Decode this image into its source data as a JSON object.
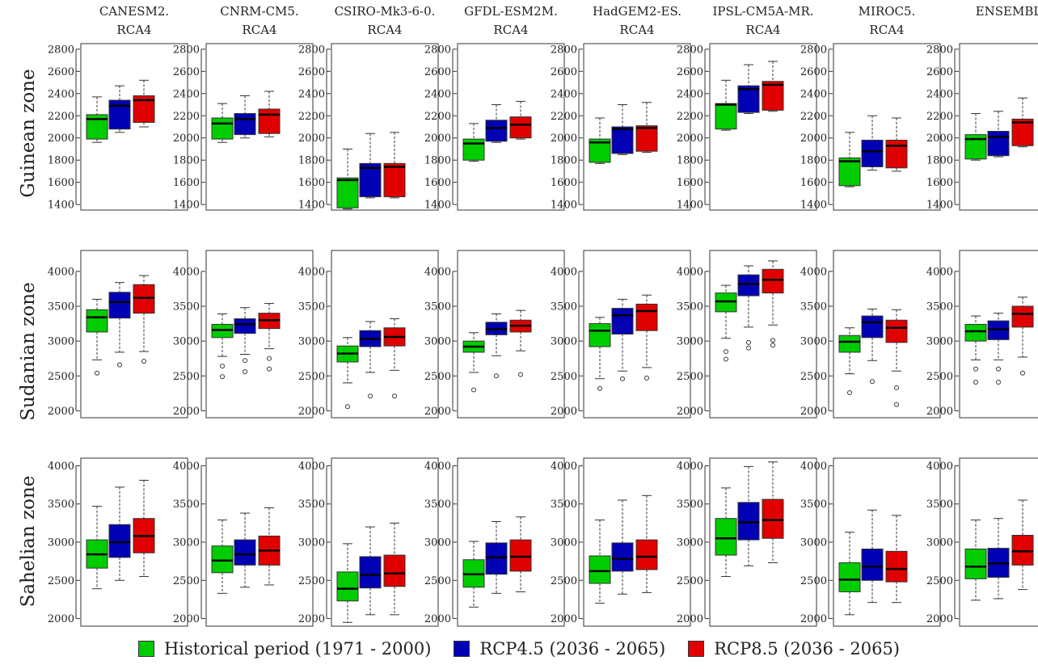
{
  "chart_data": {
    "type": "boxplot",
    "models": [
      {
        "name_line1": "CANESM2.",
        "name_line2": "RCA4"
      },
      {
        "name_line1": "CNRM-CM5.",
        "name_line2": "RCA4"
      },
      {
        "name_line1": "CSIRO-Mk3-6-0.",
        "name_line2": "RCA4"
      },
      {
        "name_line1": "GFDL-ESM2M.",
        "name_line2": "RCA4"
      },
      {
        "name_line1": "HadGEM2-ES.",
        "name_line2": "RCA4"
      },
      {
        "name_line1": "IPSL-CM5A-MR.",
        "name_line2": "RCA4"
      },
      {
        "name_line1": "MIROC5.",
        "name_line2": "RCA4"
      },
      {
        "name_line1": "ENSEMBLE",
        "name_line2": ""
      }
    ],
    "zones": [
      {
        "name": "Guinean zone",
        "ylim": [
          1350,
          2850
        ],
        "yticks": [
          1400,
          1600,
          1800,
          2000,
          2200,
          2400,
          2600,
          2800
        ],
        "panels": [
          [
            {
              "min": 1960,
              "q1": 1990,
              "median": 2170,
              "q3": 2210,
              "max": 2370,
              "outliers": []
            },
            {
              "min": 2050,
              "q1": 2080,
              "median": 2290,
              "q3": 2340,
              "max": 2470,
              "outliers": []
            },
            {
              "min": 2100,
              "q1": 2140,
              "median": 2340,
              "q3": 2380,
              "max": 2520,
              "outliers": []
            }
          ],
          [
            {
              "min": 1960,
              "q1": 1990,
              "median": 2130,
              "q3": 2180,
              "max": 2310,
              "outliers": []
            },
            {
              "min": 2000,
              "q1": 2030,
              "median": 2170,
              "q3": 2220,
              "max": 2380,
              "outliers": []
            },
            {
              "min": 2010,
              "q1": 2040,
              "median": 2210,
              "q3": 2260,
              "max": 2420,
              "outliers": []
            }
          ],
          [
            {
              "min": 1360,
              "q1": 1370,
              "median": 1620,
              "q3": 1640,
              "max": 1900,
              "outliers": []
            },
            {
              "min": 1460,
              "q1": 1470,
              "median": 1730,
              "q3": 1770,
              "max": 2040,
              "outliers": []
            },
            {
              "min": 1460,
              "q1": 1470,
              "median": 1740,
              "q3": 1770,
              "max": 2050,
              "outliers": []
            }
          ],
          [
            {
              "min": 1790,
              "q1": 1800,
              "median": 1950,
              "q3": 1990,
              "max": 2130,
              "outliers": []
            },
            {
              "min": 1960,
              "q1": 1970,
              "median": 2090,
              "q3": 2160,
              "max": 2300,
              "outliers": []
            },
            {
              "min": 1990,
              "q1": 2000,
              "median": 2120,
              "q3": 2190,
              "max": 2330,
              "outliers": []
            }
          ],
          [
            {
              "min": 1770,
              "q1": 1780,
              "median": 1960,
              "q3": 1990,
              "max": 2180,
              "outliers": []
            },
            {
              "min": 1850,
              "q1": 1860,
              "median": 2080,
              "q3": 2100,
              "max": 2300,
              "outliers": []
            },
            {
              "min": 1870,
              "q1": 1880,
              "median": 2090,
              "q3": 2110,
              "max": 2320,
              "outliers": []
            }
          ],
          [
            {
              "min": 2070,
              "q1": 2080,
              "median": 2300,
              "q3": 2310,
              "max": 2520,
              "outliers": []
            },
            {
              "min": 2220,
              "q1": 2230,
              "median": 2440,
              "q3": 2470,
              "max": 2660,
              "outliers": []
            },
            {
              "min": 2240,
              "q1": 2250,
              "median": 2480,
              "q3": 2510,
              "max": 2690,
              "outliers": []
            }
          ],
          [
            {
              "min": 1560,
              "q1": 1570,
              "median": 1790,
              "q3": 1820,
              "max": 2050,
              "outliers": []
            },
            {
              "min": 1710,
              "q1": 1740,
              "median": 1880,
              "q3": 1980,
              "max": 2200,
              "outliers": []
            },
            {
              "min": 1700,
              "q1": 1730,
              "median": 1930,
              "q3": 1980,
              "max": 2180,
              "outliers": []
            }
          ],
          [
            {
              "min": 1800,
              "q1": 1810,
              "median": 1990,
              "q3": 2030,
              "max": 2220,
              "outliers": []
            },
            {
              "min": 1830,
              "q1": 1840,
              "median": 2010,
              "q3": 2060,
              "max": 2240,
              "outliers": []
            },
            {
              "min": 1920,
              "q1": 1930,
              "median": 2140,
              "q3": 2170,
              "max": 2360,
              "outliers": []
            }
          ]
        ]
      },
      {
        "name": "Sudanian zone",
        "ylim": [
          1900,
          4300
        ],
        "yticks": [
          2000,
          2500,
          3000,
          3500,
          4000
        ],
        "panels": [
          [
            {
              "min": 2730,
              "q1": 3130,
              "median": 3340,
              "q3": 3450,
              "max": 3600,
              "outliers": [
                2540
              ]
            },
            {
              "min": 2840,
              "q1": 3330,
              "median": 3560,
              "q3": 3700,
              "max": 3840,
              "outliers": [
                2660
              ]
            },
            {
              "min": 2850,
              "q1": 3400,
              "median": 3620,
              "q3": 3810,
              "max": 3940,
              "outliers": [
                2710
              ]
            }
          ],
          [
            {
              "min": 2780,
              "q1": 3050,
              "median": 3160,
              "q3": 3240,
              "max": 3390,
              "outliers": [
                2640,
                2490
              ]
            },
            {
              "min": 2810,
              "q1": 3110,
              "median": 3240,
              "q3": 3320,
              "max": 3480,
              "outliers": [
                2720,
                2560
              ]
            },
            {
              "min": 2890,
              "q1": 3180,
              "median": 3300,
              "q3": 3400,
              "max": 3540,
              "outliers": [
                2750,
                2600
              ]
            }
          ],
          [
            {
              "min": 2400,
              "q1": 2700,
              "median": 2820,
              "q3": 2930,
              "max": 3050,
              "outliers": [
                2060
              ]
            },
            {
              "min": 2550,
              "q1": 2920,
              "median": 3030,
              "q3": 3150,
              "max": 3280,
              "outliers": [
                2210
              ]
            },
            {
              "min": 2580,
              "q1": 2930,
              "median": 3060,
              "q3": 3190,
              "max": 3320,
              "outliers": [
                2210
              ]
            }
          ],
          [
            {
              "min": 2550,
              "q1": 2840,
              "median": 2920,
              "q3": 3000,
              "max": 3120,
              "outliers": [
                2300
              ]
            },
            {
              "min": 2790,
              "q1": 3090,
              "median": 3170,
              "q3": 3270,
              "max": 3390,
              "outliers": [
                2500
              ]
            },
            {
              "min": 2860,
              "q1": 3130,
              "median": 3220,
              "q3": 3300,
              "max": 3440,
              "outliers": [
                2520
              ]
            }
          ],
          [
            {
              "min": 2460,
              "q1": 2920,
              "median": 3150,
              "q3": 3250,
              "max": 3340,
              "outliers": [
                2320
              ]
            },
            {
              "min": 2570,
              "q1": 3100,
              "median": 3370,
              "q3": 3470,
              "max": 3600,
              "outliers": [
                2460
              ]
            },
            {
              "min": 2620,
              "q1": 3150,
              "median": 3430,
              "q3": 3530,
              "max": 3660,
              "outliers": [
                2470
              ]
            }
          ],
          [
            {
              "min": 3040,
              "q1": 3420,
              "median": 3570,
              "q3": 3690,
              "max": 3800,
              "outliers": [
                2850,
                2740
              ]
            },
            {
              "min": 3200,
              "q1": 3650,
              "median": 3820,
              "q3": 3950,
              "max": 4080,
              "outliers": [
                2980,
                2900
              ]
            },
            {
              "min": 3230,
              "q1": 3690,
              "median": 3880,
              "q3": 4030,
              "max": 4150,
              "outliers": [
                3010,
                2940
              ]
            }
          ],
          [
            {
              "min": 2530,
              "q1": 2840,
              "median": 2990,
              "q3": 3080,
              "max": 3190,
              "outliers": [
                2260
              ]
            },
            {
              "min": 2720,
              "q1": 3050,
              "median": 3270,
              "q3": 3360,
              "max": 3460,
              "outliers": [
                2420
              ]
            },
            {
              "min": 2570,
              "q1": 2980,
              "median": 3190,
              "q3": 3300,
              "max": 3450,
              "outliers": [
                2330,
                2090
              ]
            }
          ],
          [
            {
              "min": 2730,
              "q1": 3000,
              "median": 3140,
              "q3": 3240,
              "max": 3360,
              "outliers": [
                2600,
                2410
              ]
            },
            {
              "min": 2730,
              "q1": 3020,
              "median": 3170,
              "q3": 3290,
              "max": 3400,
              "outliers": [
                2600,
                2410
              ]
            },
            {
              "min": 2770,
              "q1": 3200,
              "median": 3390,
              "q3": 3500,
              "max": 3630,
              "outliers": [
                2540
              ]
            }
          ]
        ]
      },
      {
        "name": "Sahelian zone",
        "ylim": [
          1900,
          4100
        ],
        "yticks": [
          2000,
          2500,
          3000,
          3500,
          4000
        ],
        "panels": [
          [
            {
              "min": 2390,
              "q1": 2660,
              "median": 2840,
              "q3": 3030,
              "max": 3470,
              "outliers": []
            },
            {
              "min": 2500,
              "q1": 2800,
              "median": 3000,
              "q3": 3230,
              "max": 3720,
              "outliers": []
            },
            {
              "min": 2550,
              "q1": 2860,
              "median": 3080,
              "q3": 3310,
              "max": 3810,
              "outliers": []
            }
          ],
          [
            {
              "min": 2330,
              "q1": 2600,
              "median": 2760,
              "q3": 2950,
              "max": 3290,
              "outliers": []
            },
            {
              "min": 2410,
              "q1": 2700,
              "median": 2840,
              "q3": 3030,
              "max": 3380,
              "outliers": []
            },
            {
              "min": 2440,
              "q1": 2700,
              "median": 2890,
              "q3": 3080,
              "max": 3450,
              "outliers": []
            }
          ],
          [
            {
              "min": 1950,
              "q1": 2230,
              "median": 2390,
              "q3": 2610,
              "max": 2980,
              "outliers": []
            },
            {
              "min": 2050,
              "q1": 2400,
              "median": 2570,
              "q3": 2810,
              "max": 3200,
              "outliers": []
            },
            {
              "min": 2050,
              "q1": 2420,
              "median": 2590,
              "q3": 2830,
              "max": 3250,
              "outliers": []
            }
          ],
          [
            {
              "min": 2150,
              "q1": 2410,
              "median": 2580,
              "q3": 2770,
              "max": 3010,
              "outliers": []
            },
            {
              "min": 2330,
              "q1": 2580,
              "median": 2800,
              "q3": 2990,
              "max": 3270,
              "outliers": []
            },
            {
              "min": 2350,
              "q1": 2620,
              "median": 2810,
              "q3": 3030,
              "max": 3330,
              "outliers": []
            }
          ],
          [
            {
              "min": 2200,
              "q1": 2460,
              "median": 2620,
              "q3": 2820,
              "max": 3290,
              "outliers": []
            },
            {
              "min": 2320,
              "q1": 2620,
              "median": 2780,
              "q3": 2990,
              "max": 3550,
              "outliers": []
            },
            {
              "min": 2340,
              "q1": 2640,
              "median": 2810,
              "q3": 3030,
              "max": 3610,
              "outliers": []
            }
          ],
          [
            {
              "min": 2550,
              "q1": 2830,
              "median": 3050,
              "q3": 3310,
              "max": 3710,
              "outliers": []
            },
            {
              "min": 2690,
              "q1": 3030,
              "median": 3260,
              "q3": 3520,
              "max": 3990,
              "outliers": []
            },
            {
              "min": 2730,
              "q1": 3050,
              "median": 3290,
              "q3": 3560,
              "max": 4050,
              "outliers": []
            }
          ],
          [
            {
              "min": 2050,
              "q1": 2350,
              "median": 2510,
              "q3": 2730,
              "max": 3130,
              "outliers": []
            },
            {
              "min": 2210,
              "q1": 2500,
              "median": 2680,
              "q3": 2910,
              "max": 3420,
              "outliers": []
            },
            {
              "min": 2210,
              "q1": 2480,
              "median": 2650,
              "q3": 2880,
              "max": 3350,
              "outliers": []
            }
          ],
          [
            {
              "min": 2240,
              "q1": 2520,
              "median": 2680,
              "q3": 2910,
              "max": 3290,
              "outliers": []
            },
            {
              "min": 2260,
              "q1": 2540,
              "median": 2720,
              "q3": 2920,
              "max": 3310,
              "outliers": []
            },
            {
              "min": 2380,
              "q1": 2700,
              "median": 2880,
              "q3": 3090,
              "max": 3550,
              "outliers": []
            }
          ]
        ]
      }
    ],
    "series": [
      {
        "name": "Historical period (1971 - 2000)",
        "color": "#00cc00"
      },
      {
        "name": "RCP4.5 (2036 - 2065)",
        "color": "#0000b4"
      },
      {
        "name": "RCP8.5 (2036 - 2065)",
        "color": "#e00000"
      }
    ],
    "legend_position": "bottom-center",
    "grid": false
  }
}
